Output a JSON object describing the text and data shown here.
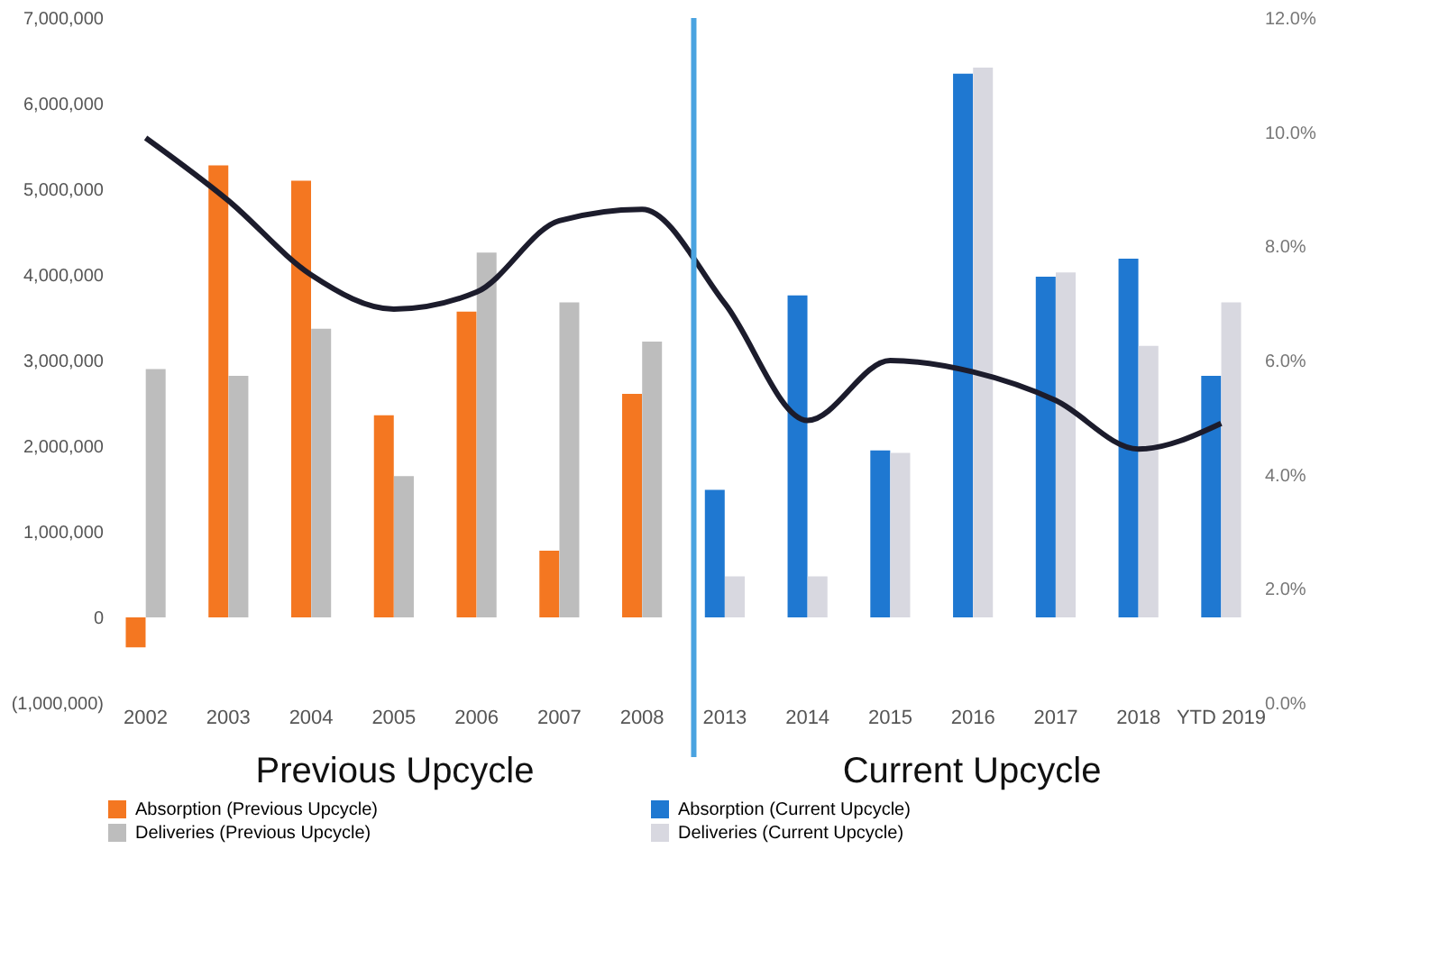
{
  "chart_data": {
    "type": "bar",
    "categories": [
      "2002",
      "2003",
      "2004",
      "2005",
      "2006",
      "2007",
      "2008",
      "2013",
      "2014",
      "2015",
      "2016",
      "2017",
      "2018",
      "YTD 2019"
    ],
    "series": [
      {
        "name": "Absorption (Previous Upcycle)",
        "color": "#f47721",
        "values": [
          -350000,
          5280000,
          5100000,
          2360000,
          3570000,
          780000,
          2610000,
          null,
          null,
          null,
          null,
          null,
          null,
          null
        ]
      },
      {
        "name": "Absorption (Current Upcycle)",
        "color": "#1f78d1",
        "values": [
          null,
          null,
          null,
          null,
          null,
          null,
          null,
          1490000,
          3760000,
          1950000,
          6350000,
          3980000,
          4190000,
          2820000
        ]
      },
      {
        "name": "Deliveries (Previous Upcycle)",
        "color": "#bdbdbd",
        "values": [
          2900000,
          2820000,
          3370000,
          1650000,
          4260000,
          3680000,
          3220000,
          null,
          null,
          null,
          null,
          null,
          null,
          null
        ]
      },
      {
        "name": "Deliveries (Current Upcycle)",
        "color": "#d8d8e0",
        "values": [
          null,
          null,
          null,
          null,
          null,
          null,
          null,
          480000,
          480000,
          1920000,
          6420000,
          4030000,
          3170000,
          3680000
        ]
      },
      {
        "type": "line",
        "axis": "y2",
        "color": "#1c1c2c",
        "values": [
          9.9,
          8.8,
          7.5,
          6.9,
          7.2,
          8.45,
          8.65,
          7.0,
          4.95,
          6.0,
          5.8,
          5.3,
          4.45,
          4.9
        ]
      }
    ],
    "ylim": [
      -1000000,
      7000000
    ],
    "yticks": [
      {
        "value": -1000000,
        "label": "(1,000,000)"
      },
      {
        "value": 0,
        "label": "0"
      },
      {
        "value": 1000000,
        "label": "1,000,000"
      },
      {
        "value": 2000000,
        "label": "2,000,000"
      },
      {
        "value": 3000000,
        "label": "3,000,000"
      },
      {
        "value": 4000000,
        "label": "4,000,000"
      },
      {
        "value": 5000000,
        "label": "5,000,000"
      },
      {
        "value": 6000000,
        "label": "6,000,000"
      },
      {
        "value": 7000000,
        "label": "7,000,000"
      }
    ],
    "y2lim": [
      0,
      12
    ],
    "y2ticks": [
      {
        "value": 0,
        "label": "0.0%"
      },
      {
        "value": 2,
        "label": "2.0%"
      },
      {
        "value": 4,
        "label": "4.0%"
      },
      {
        "value": 6,
        "label": "6.0%"
      },
      {
        "value": 8,
        "label": "8.0%"
      },
      {
        "value": 10,
        "label": "10.0%"
      },
      {
        "value": 12,
        "label": "12.0%"
      }
    ],
    "ref_lines": [
      {
        "axis": "x",
        "value": "2013",
        "color": "#4aa3e0"
      }
    ],
    "annotations": [
      "Previous Upcycle",
      "Current Upcycle"
    ],
    "grid": false,
    "legend": "bottom"
  }
}
